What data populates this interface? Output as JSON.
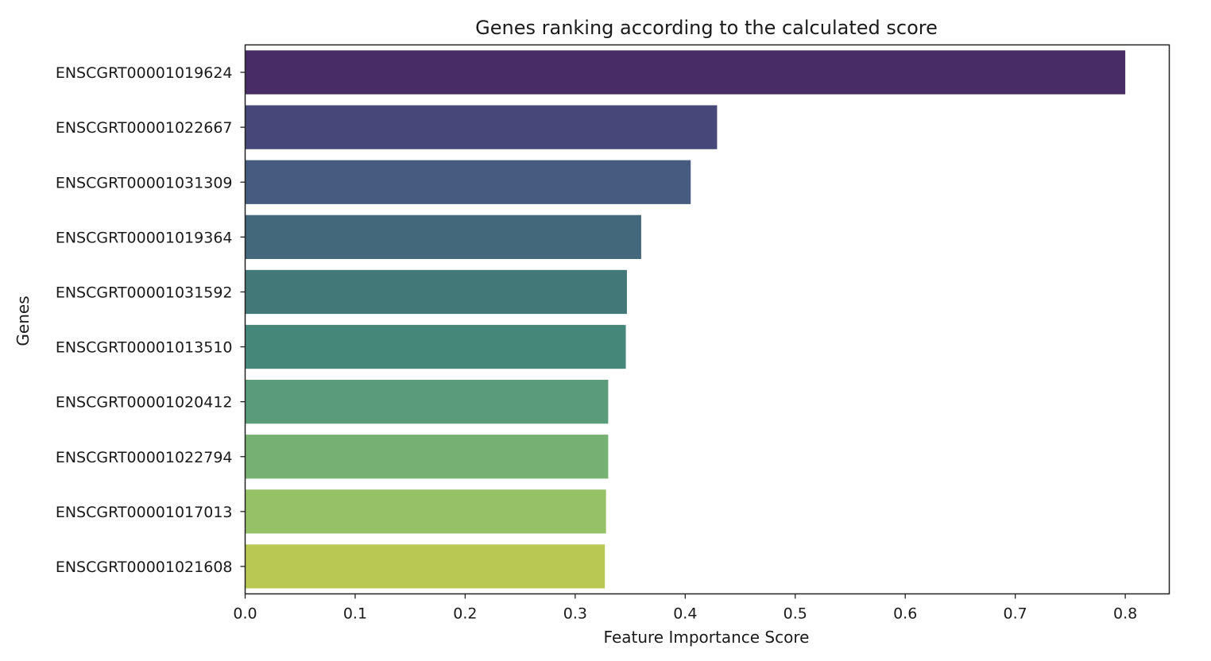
{
  "chart_data": {
    "type": "bar",
    "orientation": "horizontal",
    "title": "Genes ranking according to the calculated score",
    "xlabel": "Feature Importance Score",
    "ylabel": "Genes",
    "xlim": [
      0.0,
      0.84
    ],
    "xticks": [
      "0.0",
      "0.1",
      "0.2",
      "0.3",
      "0.4",
      "0.5",
      "0.6",
      "0.7",
      "0.8"
    ],
    "grid": false,
    "categories": [
      "ENSCGRT00001019624",
      "ENSCGRT00001022667",
      "ENSCGRT00001031309",
      "ENSCGRT00001019364",
      "ENSCGRT00001031592",
      "ENSCGRT00001013510",
      "ENSCGRT00001020412",
      "ENSCGRT00001022794",
      "ENSCGRT00001017013",
      "ENSCGRT00001021608"
    ],
    "values": [
      0.8,
      0.429,
      0.405,
      0.36,
      0.347,
      0.346,
      0.33,
      0.33,
      0.328,
      0.327
    ],
    "colors": [
      "#472c66",
      "#484779",
      "#465b7f",
      "#43687b",
      "#437879",
      "#458879",
      "#599b7a",
      "#76b173",
      "#96c166",
      "#b8c853"
    ]
  }
}
